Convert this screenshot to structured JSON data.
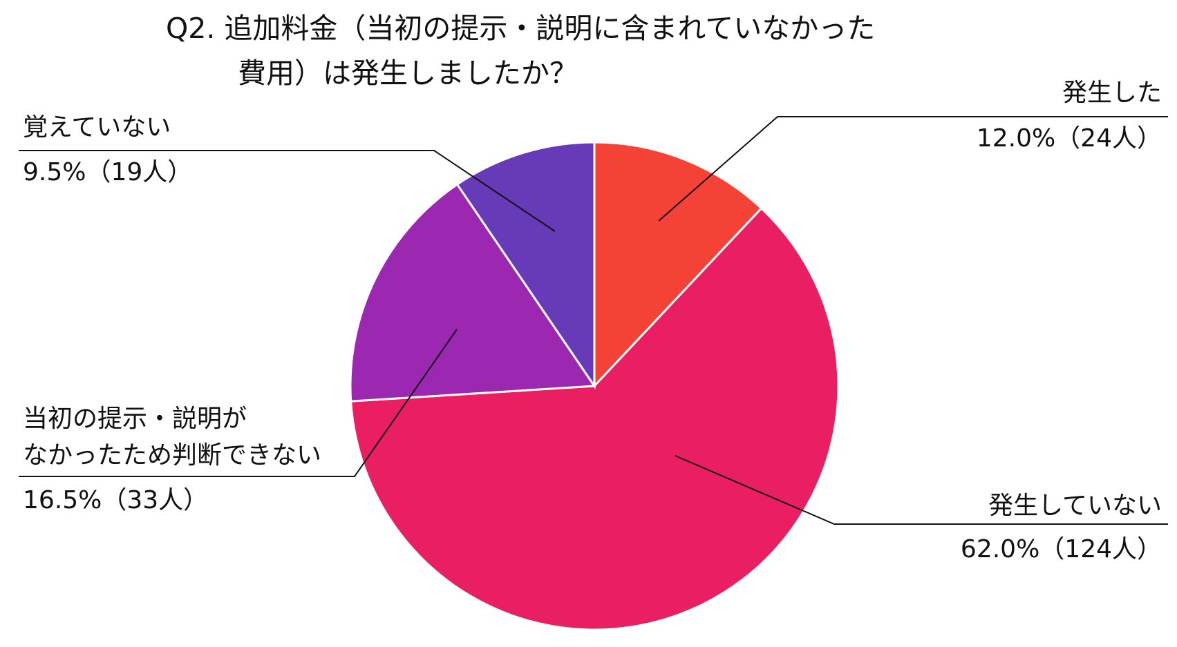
{
  "chart_data": {
    "type": "pie",
    "title": "Q2. 追加料金（当初の提示・説明に含まれていなかった\n費用）は発生しましたか？",
    "categories": [
      "発生した",
      "発生していない",
      "当初の提示・説明が\nなかったため判断できない",
      "覚えていない"
    ],
    "values": [
      12.0,
      62.0,
      16.5,
      9.5
    ],
    "value_labels": [
      "12.0%（24人）",
      "62.0%（124人）",
      "16.5%（33人）",
      "9.5%（19人）"
    ],
    "colors": [
      "#f44336",
      "#e91e63",
      "#9c27b0",
      "#673ab7"
    ]
  }
}
